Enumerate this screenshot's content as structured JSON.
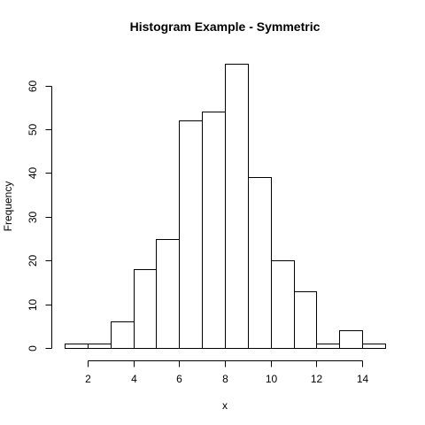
{
  "chart_data": {
    "type": "bar",
    "title": "Histogram Example - Symmetric",
    "xlabel": "x",
    "ylabel": "Frequency",
    "bins": [
      {
        "start": 1,
        "end": 2,
        "count": 1
      },
      {
        "start": 2,
        "end": 3,
        "count": 1
      },
      {
        "start": 3,
        "end": 4,
        "count": 6
      },
      {
        "start": 4,
        "end": 5,
        "count": 18
      },
      {
        "start": 5,
        "end": 6,
        "count": 25
      },
      {
        "start": 6,
        "end": 7,
        "count": 52
      },
      {
        "start": 7,
        "end": 8,
        "count": 54
      },
      {
        "start": 8,
        "end": 9,
        "count": 65
      },
      {
        "start": 9,
        "end": 10,
        "count": 39
      },
      {
        "start": 10,
        "end": 11,
        "count": 20
      },
      {
        "start": 11,
        "end": 12,
        "count": 13
      },
      {
        "start": 12,
        "end": 13,
        "count": 1
      },
      {
        "start": 13,
        "end": 14,
        "count": 4
      },
      {
        "start": 14,
        "end": 15,
        "count": 1
      }
    ],
    "x_ticks": [
      "2",
      "4",
      "6",
      "8",
      "10",
      "12",
      "14"
    ],
    "y_ticks": [
      "0",
      "10",
      "20",
      "30",
      "40",
      "50",
      "60"
    ],
    "xlim": [
      1,
      15
    ],
    "ylim": [
      0,
      65
    ],
    "grid": false
  }
}
